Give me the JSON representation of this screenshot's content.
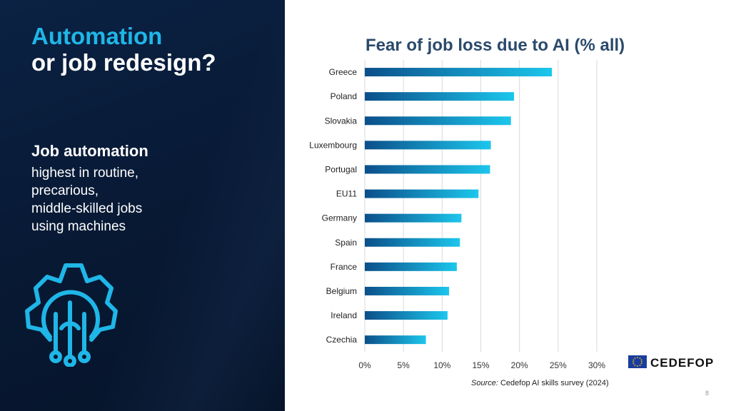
{
  "left_panel": {
    "title_line1": "Automation",
    "title_line2": "or job redesign?",
    "subheading": "Job automation",
    "body_lines": [
      "highest in routine,",
      "precarious,",
      "middle-skilled jobs",
      "using machines"
    ],
    "icon": "gear-circuit-icon"
  },
  "chart_data": {
    "type": "bar",
    "orientation": "horizontal",
    "title": "Fear of job loss due to AI (% all)",
    "categories": [
      "Greece",
      "Poland",
      "Slovakia",
      "Luxembourg",
      "Portugal",
      "EU11",
      "Germany",
      "Spain",
      "France",
      "Belgium",
      "Ireland",
      "Czechia"
    ],
    "values": [
      24.2,
      19.3,
      18.9,
      16.3,
      16.2,
      14.7,
      12.5,
      12.3,
      11.9,
      10.9,
      10.7,
      7.9
    ],
    "x_ticks": [
      "0%",
      "5%",
      "10%",
      "15%",
      "20%",
      "25%",
      "30%"
    ],
    "xlim": [
      0,
      30
    ],
    "grid": true,
    "bar_color_start": "#0b4f8a",
    "bar_color_end": "#1cc6ec"
  },
  "source": {
    "label": "Source:",
    "text": " Cedefop AI skills survey (2024)"
  },
  "page_number": "8",
  "logo_text": "CEDEFOP",
  "logo_icon": "eu-flag-icon",
  "colors": {
    "accent": "#1fb6e8",
    "panel": "#081a36",
    "title_blue": "#2b4a6b"
  }
}
